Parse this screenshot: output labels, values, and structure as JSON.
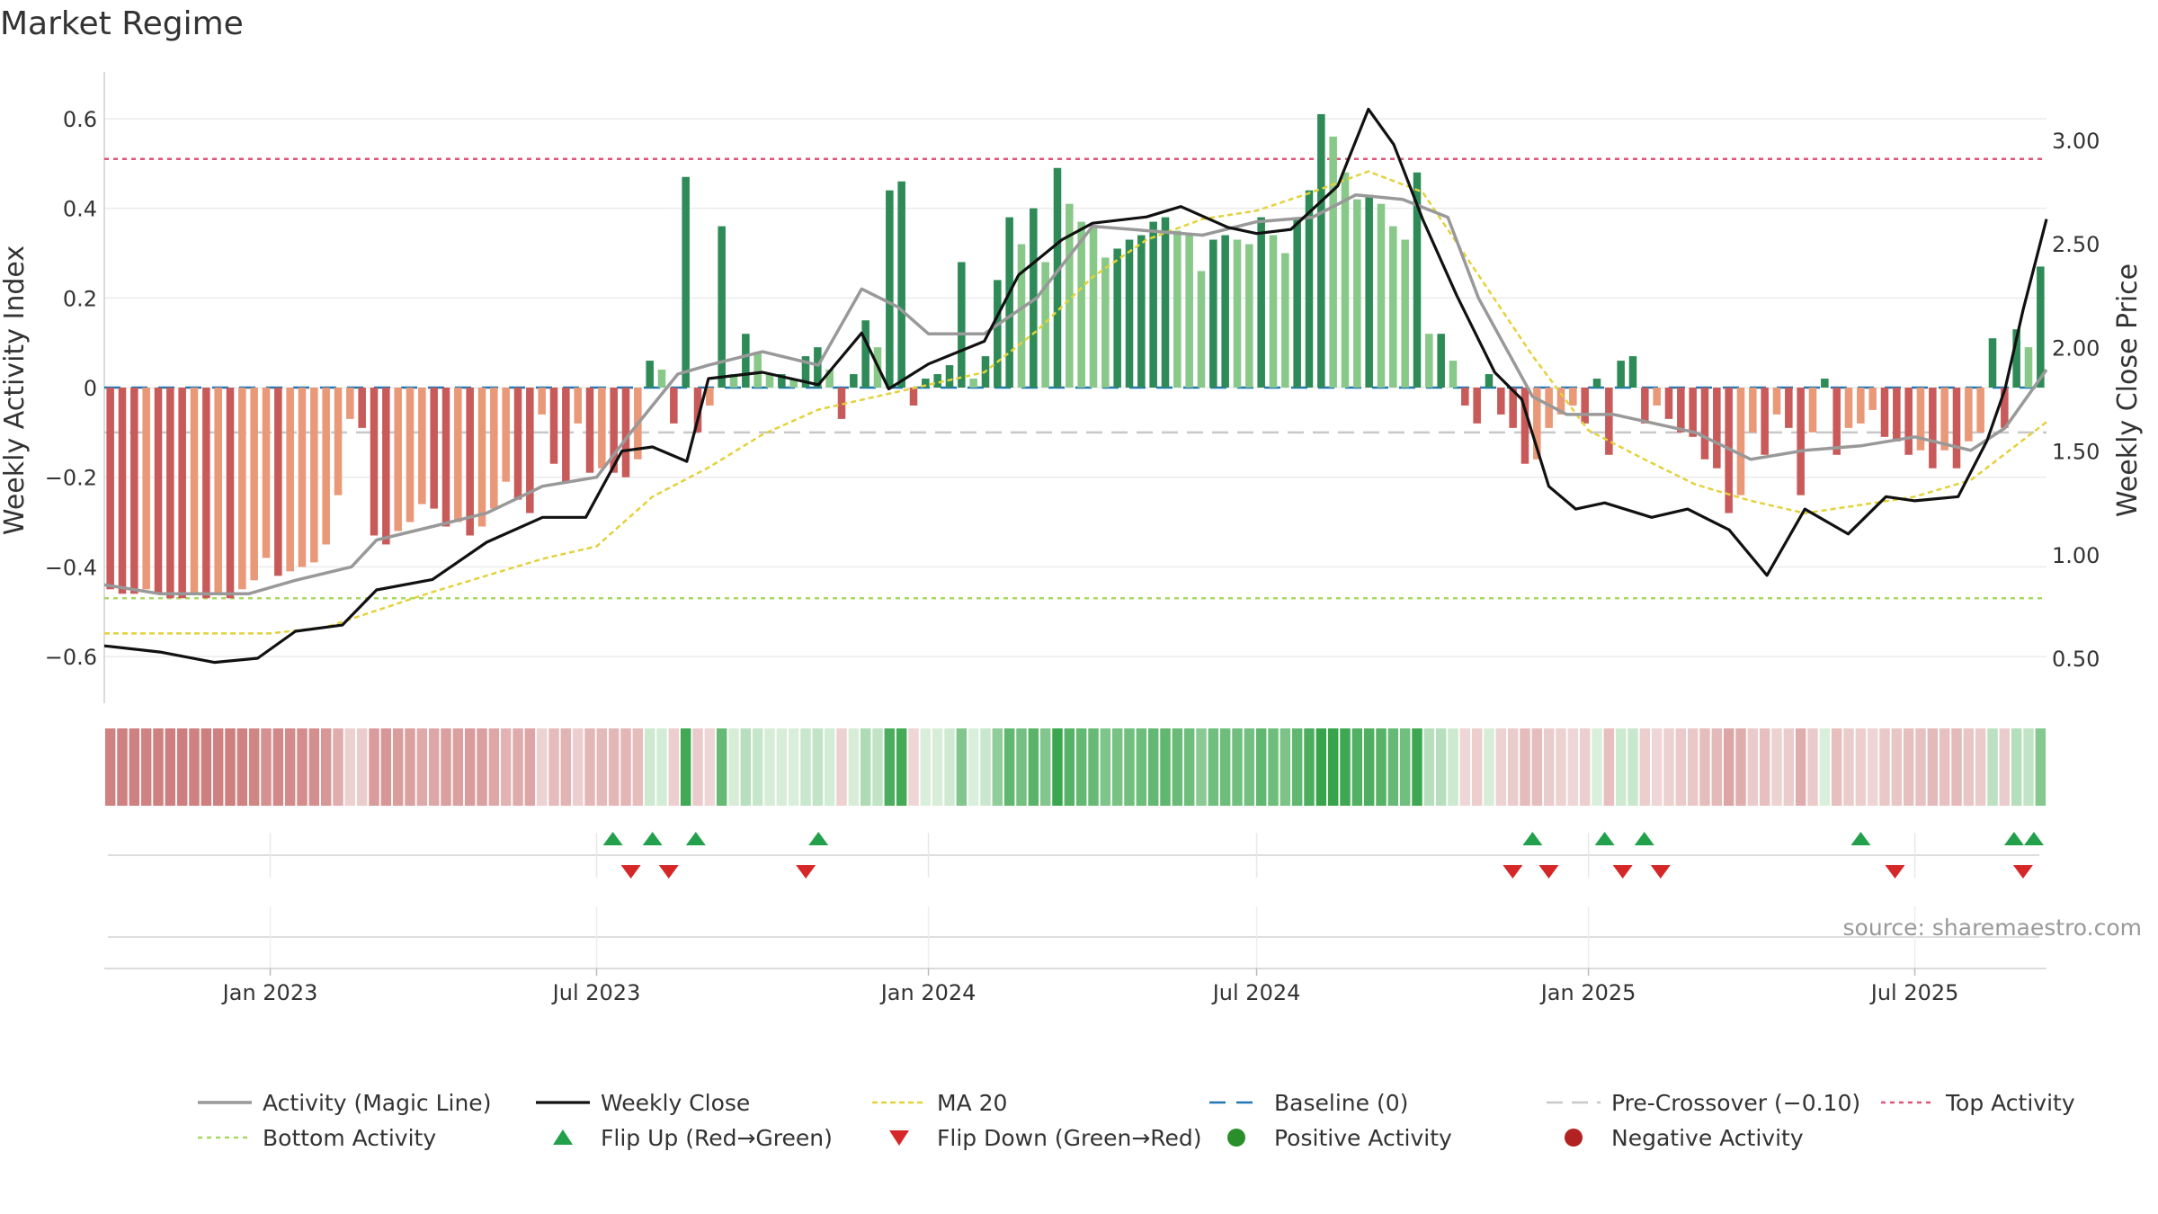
{
  "colors": {
    "pos_dark": "#2e8b57",
    "pos_light": "#88c888",
    "neg_dark": "#c85a5a",
    "neg_light": "#e99878",
    "magic": "#999999",
    "close": "#111111",
    "ma20": "#e3d23a",
    "baseline": "#1f77b4",
    "precross": "#c8c8c8",
    "top": "#e0567a",
    "bottom": "#a8d860",
    "flip_up": "#22a04b",
    "flip_down": "#d62728",
    "pos_dot": "#2a8f2a",
    "neg_dot": "#b22222"
  },
  "chart_data": {
    "type": "bar",
    "title": "Market Regime",
    "source": "source: sharemaestro.com",
    "left_axis": {
      "label": "Weekly Activity Index",
      "range": [
        -0.64,
        0.64
      ],
      "ticks": [
        0.6,
        0.4,
        0.2,
        0,
        -0.2,
        -0.4,
        -0.6
      ],
      "tick_labels": [
        "0.6",
        "0.4",
        "0.2",
        "0",
        "−0.2",
        "−0.4",
        "−0.6"
      ]
    },
    "right_axis": {
      "label": "Weekly Close Price",
      "range": [
        0.4,
        3.3
      ],
      "ticks": [
        3.0,
        2.5,
        2.0,
        1.5,
        1.0,
        0.5
      ],
      "tick_labels": [
        "3.00",
        "2.50",
        "2.00",
        "1.50",
        "1.00",
        "0.50"
      ]
    },
    "x_axis": {
      "start": "2022-10-01",
      "end": "2025-09-12",
      "ticks": [
        "2023-01-01",
        "2023-07-01",
        "2024-01-01",
        "2024-07-01",
        "2025-01-01",
        "2025-07-01"
      ],
      "tick_labels": [
        "Jan 2023",
        "Jul 2023",
        "Jan 2024",
        "Jul 2024",
        "Jan 2025",
        "Jul 2025"
      ]
    },
    "reference_lines": {
      "top_activity": 0.51,
      "bottom_activity": -0.47,
      "baseline": 0,
      "pre_crossover": -0.1
    },
    "series": [
      {
        "name": "Weekly Activity Index",
        "kind": "bar",
        "values": [
          -0.45,
          -0.46,
          -0.46,
          -0.45,
          -0.46,
          -0.47,
          -0.47,
          -0.46,
          -0.47,
          -0.46,
          -0.47,
          -0.45,
          -0.43,
          -0.38,
          -0.42,
          -0.41,
          -0.4,
          -0.39,
          -0.35,
          -0.24,
          -0.07,
          -0.09,
          -0.33,
          -0.35,
          -0.32,
          -0.3,
          -0.26,
          -0.27,
          -0.31,
          -0.3,
          -0.33,
          -0.31,
          -0.27,
          -0.21,
          -0.25,
          -0.28,
          -0.06,
          -0.17,
          -0.21,
          -0.08,
          -0.19,
          -0.18,
          -0.19,
          -0.2,
          -0.16,
          0.06,
          0.04,
          -0.08,
          0.47,
          -0.1,
          -0.04,
          0.36,
          0.03,
          0.12,
          0.08,
          0.03,
          0.03,
          0.02,
          0.07,
          0.09,
          0.04,
          -0.07,
          0.03,
          0.15,
          0.09,
          0.44,
          0.46,
          -0.04,
          0.02,
          0.03,
          0.05,
          0.28,
          0.02,
          0.07,
          0.24,
          0.38,
          0.32,
          0.4,
          0.28,
          0.49,
          0.41,
          0.37,
          0.36,
          0.29,
          0.31,
          0.33,
          0.34,
          0.37,
          0.38,
          0.35,
          0.34,
          0.26,
          0.33,
          0.34,
          0.33,
          0.32,
          0.38,
          0.34,
          0.3,
          0.38,
          0.44,
          0.61,
          0.56,
          0.48,
          0.42,
          0.43,
          0.41,
          0.36,
          0.33,
          0.48,
          0.12,
          0.12,
          0.06,
          -0.04,
          -0.08,
          0.03,
          -0.06,
          -0.09,
          -0.17,
          -0.16,
          -0.09,
          -0.06,
          -0.04,
          -0.08,
          0.02,
          -0.15,
          0.06,
          0.07,
          -0.08,
          -0.04,
          -0.07,
          -0.1,
          -0.11,
          -0.16,
          -0.18,
          -0.28,
          -0.24,
          -0.1,
          -0.15,
          -0.06,
          -0.09,
          -0.24,
          -0.1,
          0.02,
          -0.15,
          -0.09,
          -0.08,
          -0.05,
          -0.11,
          -0.12,
          -0.15,
          -0.14,
          -0.18,
          -0.14,
          -0.18,
          -0.12,
          -0.1,
          0.11,
          -0.09,
          0.13,
          0.09,
          0.27
        ]
      },
      {
        "name": "Activity (Magic Line)",
        "kind": "line",
        "axis": "left",
        "points": [
          [
            "2022-10-01",
            -0.44
          ],
          [
            "2022-11-01",
            -0.46
          ],
          [
            "2022-12-20",
            -0.46
          ],
          [
            "2023-01-15",
            -0.43
          ],
          [
            "2023-02-15",
            -0.4
          ],
          [
            "2023-03-01",
            -0.34
          ],
          [
            "2023-04-01",
            -0.31
          ],
          [
            "2023-05-01",
            -0.28
          ],
          [
            "2023-06-01",
            -0.22
          ],
          [
            "2023-07-01",
            -0.2
          ],
          [
            "2023-07-20",
            -0.1
          ],
          [
            "2023-08-01",
            -0.04
          ],
          [
            "2023-08-15",
            0.03
          ],
          [
            "2023-09-01",
            0.05
          ],
          [
            "2023-10-01",
            0.08
          ],
          [
            "2023-11-01",
            0.05
          ],
          [
            "2023-11-25",
            0.22
          ],
          [
            "2023-12-15",
            0.18
          ],
          [
            "2024-01-01",
            0.12
          ],
          [
            "2024-02-01",
            0.12
          ],
          [
            "2024-03-01",
            0.2
          ],
          [
            "2024-04-01",
            0.36
          ],
          [
            "2024-05-01",
            0.35
          ],
          [
            "2024-06-01",
            0.34
          ],
          [
            "2024-07-01",
            0.37
          ],
          [
            "2024-08-01",
            0.38
          ],
          [
            "2024-08-25",
            0.43
          ],
          [
            "2024-09-20",
            0.42
          ],
          [
            "2024-10-15",
            0.38
          ],
          [
            "2024-11-01",
            0.2
          ],
          [
            "2024-12-01",
            -0.02
          ],
          [
            "2024-12-20",
            -0.06
          ],
          [
            "2025-01-15",
            -0.06
          ],
          [
            "2025-03-01",
            -0.1
          ],
          [
            "2025-04-01",
            -0.16
          ],
          [
            "2025-05-01",
            -0.14
          ],
          [
            "2025-06-01",
            -0.13
          ],
          [
            "2025-07-01",
            -0.11
          ],
          [
            "2025-08-01",
            -0.14
          ],
          [
            "2025-08-20",
            -0.09
          ],
          [
            "2025-09-12",
            0.04
          ]
        ]
      },
      {
        "name": "Weekly Close",
        "kind": "line",
        "axis": "right",
        "points": [
          [
            "2022-10-01",
            0.56
          ],
          [
            "2022-11-01",
            0.53
          ],
          [
            "2022-12-01",
            0.48
          ],
          [
            "2022-12-25",
            0.5
          ],
          [
            "2023-01-15",
            0.63
          ],
          [
            "2023-02-10",
            0.66
          ],
          [
            "2023-03-01",
            0.83
          ],
          [
            "2023-04-01",
            0.88
          ],
          [
            "2023-05-01",
            1.06
          ],
          [
            "2023-06-01",
            1.18
          ],
          [
            "2023-06-25",
            1.18
          ],
          [
            "2023-07-15",
            1.5
          ],
          [
            "2023-08-01",
            1.52
          ],
          [
            "2023-08-20",
            1.45
          ],
          [
            "2023-09-01",
            1.85
          ],
          [
            "2023-10-01",
            1.88
          ],
          [
            "2023-11-01",
            1.82
          ],
          [
            "2023-11-25",
            2.07
          ],
          [
            "2023-12-10",
            1.8
          ],
          [
            "2024-01-01",
            1.92
          ],
          [
            "2024-02-01",
            2.03
          ],
          [
            "2024-02-20",
            2.35
          ],
          [
            "2024-03-15",
            2.52
          ],
          [
            "2024-04-01",
            2.6
          ],
          [
            "2024-05-01",
            2.63
          ],
          [
            "2024-05-20",
            2.68
          ],
          [
            "2024-06-15",
            2.58
          ],
          [
            "2024-07-01",
            2.55
          ],
          [
            "2024-07-20",
            2.57
          ],
          [
            "2024-08-15",
            2.78
          ],
          [
            "2024-09-01",
            3.15
          ],
          [
            "2024-09-15",
            2.98
          ],
          [
            "2024-10-01",
            2.62
          ],
          [
            "2024-10-20",
            2.25
          ],
          [
            "2024-11-10",
            1.88
          ],
          [
            "2024-11-25",
            1.75
          ],
          [
            "2024-12-10",
            1.33
          ],
          [
            "2024-12-25",
            1.22
          ],
          [
            "2025-01-10",
            1.25
          ],
          [
            "2025-02-05",
            1.18
          ],
          [
            "2025-02-25",
            1.22
          ],
          [
            "2025-03-20",
            1.12
          ],
          [
            "2025-04-10",
            0.9
          ],
          [
            "2025-05-01",
            1.22
          ],
          [
            "2025-05-25",
            1.1
          ],
          [
            "2025-06-15",
            1.28
          ],
          [
            "2025-07-01",
            1.26
          ],
          [
            "2025-07-25",
            1.28
          ],
          [
            "2025-08-10",
            1.55
          ],
          [
            "2025-08-20",
            1.8
          ],
          [
            "2025-08-30",
            2.18
          ],
          [
            "2025-09-12",
            2.62
          ]
        ]
      },
      {
        "name": "MA 20",
        "kind": "line",
        "axis": "right",
        "points": [
          [
            "2022-10-01",
            0.62
          ],
          [
            "2023-01-01",
            0.62
          ],
          [
            "2023-02-01",
            0.65
          ],
          [
            "2023-04-01",
            0.82
          ],
          [
            "2023-06-01",
            0.98
          ],
          [
            "2023-07-01",
            1.04
          ],
          [
            "2023-08-01",
            1.28
          ],
          [
            "2023-09-01",
            1.42
          ],
          [
            "2023-10-01",
            1.58
          ],
          [
            "2023-11-01",
            1.7
          ],
          [
            "2024-01-01",
            1.82
          ],
          [
            "2024-02-01",
            1.88
          ],
          [
            "2024-03-01",
            2.08
          ],
          [
            "2024-04-01",
            2.34
          ],
          [
            "2024-05-01",
            2.52
          ],
          [
            "2024-06-01",
            2.62
          ],
          [
            "2024-07-01",
            2.66
          ],
          [
            "2024-08-01",
            2.75
          ],
          [
            "2024-09-01",
            2.85
          ],
          [
            "2024-10-01",
            2.75
          ],
          [
            "2024-11-01",
            2.35
          ],
          [
            "2024-12-01",
            1.96
          ],
          [
            "2025-01-01",
            1.6
          ],
          [
            "2025-02-01",
            1.46
          ],
          [
            "2025-03-01",
            1.34
          ],
          [
            "2025-04-01",
            1.26
          ],
          [
            "2025-05-01",
            1.2
          ],
          [
            "2025-06-01",
            1.24
          ],
          [
            "2025-07-01",
            1.28
          ],
          [
            "2025-08-01",
            1.36
          ],
          [
            "2025-09-12",
            1.64
          ]
        ]
      }
    ],
    "flip_up": [
      "2023-07-10",
      "2023-08-01",
      "2023-08-25",
      "2023-11-01",
      "2024-12-01",
      "2025-01-10",
      "2025-02-01",
      "2025-06-01",
      "2025-08-25",
      "2025-09-05"
    ],
    "flip_down": [
      "2023-07-20",
      "2023-08-10",
      "2023-10-25",
      "2024-11-20",
      "2024-12-10",
      "2025-01-20",
      "2025-02-10",
      "2025-06-20",
      "2025-08-30"
    ],
    "legend": [
      "Activity (Magic Line)",
      "Weekly Close",
      "MA 20",
      "Baseline (0)",
      "Pre-Crossover (−0.10)",
      "Top Activity",
      "Bottom Activity",
      "Flip Up (Red→Green)",
      "Flip Down (Green→Red)",
      "Positive Activity",
      "Negative Activity"
    ]
  }
}
